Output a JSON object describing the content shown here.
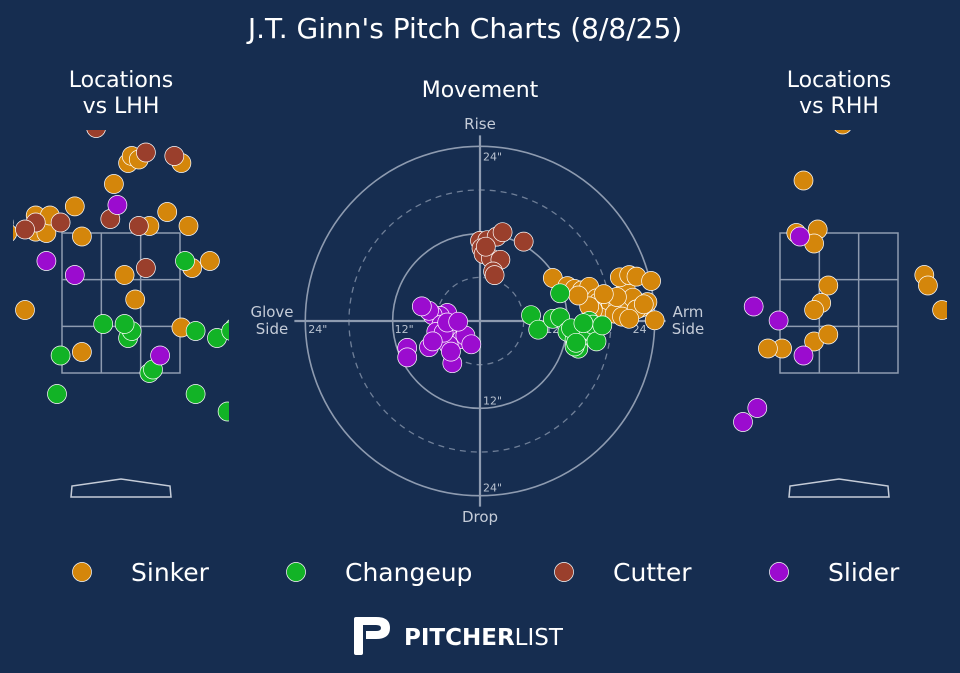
{
  "title": "J.T. Ginn's Pitch Charts (8/8/25)",
  "colors": {
    "background": "#162d50",
    "text": "#ffffff",
    "muted": "#c5ccd8",
    "grid": "#8e9bb0",
    "Sinker": "#d4860b",
    "Changeup": "#12b326",
    "Cutter": "#9a3f2c",
    "Slider": "#9b0ccf"
  },
  "legend": [
    "Sinker",
    "Changeup",
    "Cutter",
    "Slider"
  ],
  "brand": {
    "left": "PITCHER",
    "right": "LIST",
    "icon": "pitcherlist-logo-icon"
  },
  "chart_data": [
    {
      "type": "scatter",
      "title": "Locations vs LHH",
      "series": [
        {
          "name": "Sinker",
          "points": [
            [
              -1.7,
              3.65
            ],
            [
              -1.7,
              3.55
            ],
            [
              -1.6,
              3.5
            ],
            [
              -1.2,
              3.75
            ],
            [
              -1.2,
              3.52
            ],
            [
              -1.05,
              3.5
            ],
            [
              -1.0,
              3.75
            ],
            [
              -0.65,
              3.88
            ],
            [
              -0.55,
              3.45
            ],
            [
              -0.1,
              4.2
            ],
            [
              0.1,
              4.5
            ],
            [
              0.15,
              4.6
            ],
            [
              0.25,
              4.55
            ],
            [
              0.4,
              3.6
            ],
            [
              0.85,
              4.5
            ],
            [
              0.65,
              3.8
            ],
            [
              1.0,
              3.0
            ],
            [
              0.2,
              2.55
            ],
            [
              0.05,
              2.9
            ],
            [
              0.95,
              3.6
            ],
            [
              1.25,
              3.1
            ],
            [
              1.85,
              3.1
            ],
            [
              -1.35,
              2.4
            ],
            [
              0.85,
              2.15
            ],
            [
              -0.55,
              1.8
            ]
          ]
        },
        {
          "name": "Changeup",
          "points": [
            [
              0.9,
              3.1
            ],
            [
              1.7,
              3.2
            ],
            [
              0.1,
              2.0
            ],
            [
              -0.25,
              2.2
            ],
            [
              0.15,
              2.1
            ],
            [
              0.05,
              2.2
            ],
            [
              1.05,
              2.1
            ],
            [
              1.35,
              2.0
            ],
            [
              1.6,
              2.15
            ],
            [
              1.95,
              2.3
            ],
            [
              1.55,
              2.1
            ],
            [
              -0.85,
              1.75
            ],
            [
              0.4,
              1.5
            ],
            [
              0.45,
              1.55
            ],
            [
              -0.9,
              1.2
            ],
            [
              1.05,
              1.2
            ],
            [
              1.7,
              1.3
            ],
            [
              1.5,
              0.95
            ]
          ]
        },
        {
          "name": "Cutter",
          "points": [
            [
              -0.8,
              5.45
            ],
            [
              -0.15,
              5.55
            ],
            [
              -0.35,
              5.0
            ],
            [
              0.35,
              4.65
            ],
            [
              0.75,
              4.6
            ],
            [
              -1.7,
              4.25
            ],
            [
              -1.65,
              3.65
            ],
            [
              -1.2,
              3.65
            ],
            [
              -0.85,
              3.65
            ],
            [
              -0.15,
              3.7
            ],
            [
              0.25,
              3.6
            ],
            [
              0.35,
              3.0
            ],
            [
              -1.35,
              3.55
            ]
          ]
        },
        {
          "name": "Slider",
          "points": [
            [
              -0.05,
              3.9
            ],
            [
              -1.05,
              3.1
            ],
            [
              -0.65,
              2.9
            ],
            [
              0.55,
              1.75
            ]
          ]
        }
      ]
    },
    {
      "type": "scatter",
      "title": "Movement",
      "xlabel": "Glove Side / Arm Side",
      "ylabel": "Rise / Drop",
      "labels": {
        "top": "Rise",
        "bottom": "Drop",
        "left": "Glove Side",
        "right": "Arm Side"
      },
      "rings": [
        "12\"",
        "24\""
      ],
      "series": [
        {
          "name": "Sinker",
          "points": [
            [
              10,
              5.9
            ],
            [
              12,
              4.8
            ],
            [
              13,
              4.4
            ],
            [
              14,
              4.2
            ],
            [
              14.8,
              3.5
            ],
            [
              15,
              4.7
            ],
            [
              16,
              3.1
            ],
            [
              16.3,
              2.6
            ],
            [
              17,
              2.2
            ],
            [
              17.5,
              3.1
            ],
            [
              18,
              2.4
            ],
            [
              19,
              2.1
            ],
            [
              20,
              4.5
            ],
            [
              21,
              3.2
            ],
            [
              22,
              1.8
            ],
            [
              23,
              2.6
            ],
            [
              21.5,
              1.6
            ],
            [
              16.5,
              0.5
            ],
            [
              15.5,
              1.5
            ],
            [
              18.5,
              1.0
            ],
            [
              19.5,
              0.6
            ],
            [
              20.5,
              0.3
            ],
            [
              22.5,
              2.3
            ],
            [
              24,
              0.1
            ],
            [
              15,
              2.0
            ],
            [
              13.5,
              3.5
            ],
            [
              18.8,
              3.3
            ],
            [
              19.2,
              6.0
            ],
            [
              20.5,
              6.3
            ],
            [
              21.5,
              6.1
            ],
            [
              17,
              3.7
            ],
            [
              23.5,
              5.5
            ]
          ]
        },
        {
          "name": "Changeup",
          "points": [
            [
              7,
              0.8
            ],
            [
              8,
              -1.2
            ],
            [
              10,
              0.3
            ],
            [
              11,
              0.5
            ],
            [
              12,
              -1.5
            ],
            [
              13,
              -2.5
            ],
            [
              13.5,
              -3.8
            ],
            [
              14,
              -2.0
            ],
            [
              15,
              0.0
            ],
            [
              13,
              -3.5
            ],
            [
              15.2,
              -1.5
            ],
            [
              16,
              -0.8
            ],
            [
              14.5,
              -1.2
            ],
            [
              12.5,
              -1.0
            ],
            [
              15.5,
              -0.5
            ],
            [
              16,
              -2.8
            ],
            [
              14.2,
              -0.3
            ],
            [
              16.8,
              -0.6
            ],
            [
              11,
              3.8
            ],
            [
              13.2,
              -3.0
            ]
          ]
        },
        {
          "name": "Cutter",
          "points": [
            [
              0,
              11.0
            ],
            [
              1.0,
              11.1
            ],
            [
              2.3,
              11.6
            ],
            [
              3.1,
              12.2
            ],
            [
              0.2,
              10.0
            ],
            [
              0.5,
              9.2
            ],
            [
              1.5,
              8.6
            ],
            [
              2.8,
              8.4
            ],
            [
              1.8,
              6.8
            ],
            [
              2.0,
              6.3
            ],
            [
              6,
              10.9
            ],
            [
              0.8,
              10.2
            ]
          ]
        },
        {
          "name": "Slider",
          "points": [
            [
              -4.5,
              1.1
            ],
            [
              -5.5,
              0.7
            ],
            [
              -6.5,
              0.8
            ],
            [
              -7.0,
              1.4
            ],
            [
              -8.0,
              2.0
            ],
            [
              -5.3,
              -0.5
            ],
            [
              -5.0,
              -1.2
            ],
            [
              -4.0,
              -2.0
            ],
            [
              -2.5,
              -2.5
            ],
            [
              -6,
              -1.5
            ],
            [
              -4.3,
              -3.3
            ],
            [
              -7,
              -3.6
            ],
            [
              -10.0,
              -3.7
            ],
            [
              -10.0,
              -5.0
            ],
            [
              -2.0,
              -2.0
            ],
            [
              -5.0,
              -1.6
            ],
            [
              -4.5,
              -0.2
            ],
            [
              -6.5,
              -2.8
            ],
            [
              -3.0,
              -0.1
            ],
            [
              -1.2,
              -3.2
            ],
            [
              -3.8,
              -5.8
            ],
            [
              -4.0,
              -4.2
            ]
          ]
        }
      ]
    },
    {
      "type": "scatter",
      "title": "Locations vs RHH",
      "series": [
        {
          "name": "Sinker",
          "points": [
            [
              0.05,
              5.05
            ],
            [
              -0.5,
              4.25
            ],
            [
              -0.6,
              3.5
            ],
            [
              -0.3,
              3.55
            ],
            [
              -0.35,
              3.35
            ],
            [
              -0.15,
              2.75
            ],
            [
              -0.25,
              2.5
            ],
            [
              -0.35,
              2.4
            ],
            [
              -0.8,
              1.85
            ],
            [
              -1.0,
              1.85
            ],
            [
              -0.35,
              1.95
            ],
            [
              -0.15,
              2.05
            ],
            [
              1.2,
              2.9
            ],
            [
              1.25,
              2.75
            ],
            [
              1.45,
              2.4
            ],
            [
              -2.3,
              3.55
            ]
          ]
        },
        {
          "name": "Slider",
          "points": [
            [
              -0.55,
              3.45
            ],
            [
              -2.4,
              2.6
            ],
            [
              -1.2,
              2.45
            ],
            [
              -0.85,
              2.25
            ],
            [
              -0.5,
              1.75
            ],
            [
              -2.4,
              1.2
            ],
            [
              -1.15,
              1.0
            ],
            [
              -1.35,
              0.8
            ]
          ]
        }
      ]
    }
  ]
}
